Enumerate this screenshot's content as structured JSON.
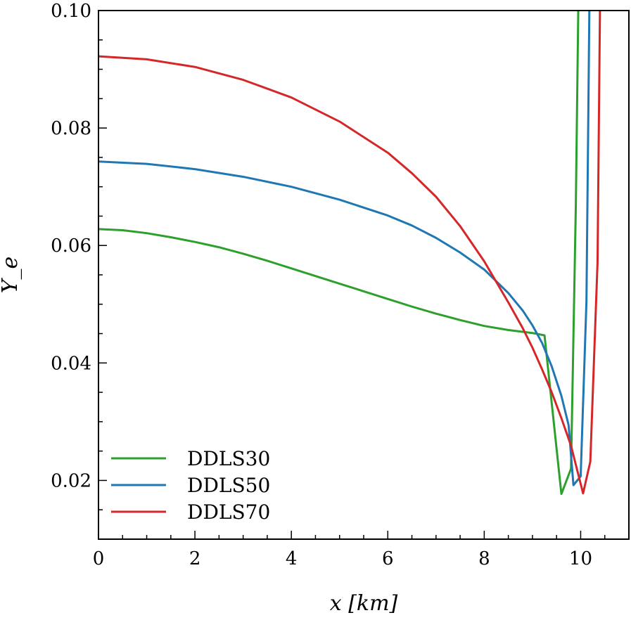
{
  "chart_data": {
    "type": "line",
    "xlabel": "x [km]",
    "ylabel": "Y_e",
    "xlim": [
      0,
      11
    ],
    "ylim": [
      0.01,
      0.1
    ],
    "x_ticks": [
      0,
      2,
      4,
      6,
      8,
      10
    ],
    "x_tick_labels": [
      "0",
      "2",
      "4",
      "6",
      "8",
      "10"
    ],
    "x_minor_step": 0.5,
    "y_ticks": [
      0.02,
      0.04,
      0.06,
      0.08,
      0.1
    ],
    "y_tick_labels": [
      "0.02",
      "0.04",
      "0.06",
      "0.08",
      "0.10"
    ],
    "y_minor_step": 0.005,
    "grid": false,
    "legend_position": "lower-left",
    "series": [
      {
        "name": "DDLS30",
        "color": "#2ca02c",
        "x": [
          0,
          0.5,
          1,
          1.5,
          2,
          2.5,
          3,
          3.5,
          4,
          4.5,
          5,
          5.5,
          6,
          6.5,
          7,
          7.5,
          8,
          8.5,
          9,
          9.25,
          9.6,
          9.8,
          9.9,
          9.95
        ],
        "y": [
          0.0628,
          0.0626,
          0.0621,
          0.0614,
          0.0606,
          0.0597,
          0.0586,
          0.0574,
          0.0561,
          0.0548,
          0.0535,
          0.0522,
          0.0509,
          0.0496,
          0.0484,
          0.0473,
          0.0463,
          0.0456,
          0.0451,
          0.0447,
          0.0177,
          0.022,
          0.067,
          0.1
        ]
      },
      {
        "name": "DDLS50",
        "color": "#1f77b4",
        "x": [
          0,
          1,
          2,
          3,
          4,
          5,
          6,
          6.5,
          7,
          7.5,
          8,
          8.5,
          8.8,
          9,
          9.2,
          9.4,
          9.6,
          9.75,
          9.85,
          10.0,
          10.12,
          10.18
        ],
        "y": [
          0.0743,
          0.0739,
          0.073,
          0.0717,
          0.07,
          0.0678,
          0.0651,
          0.0634,
          0.0613,
          0.0588,
          0.0559,
          0.0519,
          0.0489,
          0.0464,
          0.0434,
          0.0394,
          0.0344,
          0.0294,
          0.0192,
          0.0207,
          0.0505,
          0.1
        ]
      },
      {
        "name": "DDLS70",
        "color": "#d62728",
        "x": [
          0,
          1,
          2,
          3,
          4,
          5,
          6,
          6.5,
          7,
          7.5,
          8,
          8.5,
          8.8,
          9,
          9.2,
          9.4,
          9.6,
          9.8,
          10.05,
          10.2,
          10.35,
          10.4
        ],
        "y": [
          0.0922,
          0.0917,
          0.0904,
          0.0882,
          0.0852,
          0.0811,
          0.0758,
          0.0723,
          0.0683,
          0.0633,
          0.0573,
          0.0503,
          0.0459,
          0.0426,
          0.0389,
          0.035,
          0.0306,
          0.0259,
          0.0178,
          0.0232,
          0.0572,
          0.1
        ]
      }
    ]
  }
}
